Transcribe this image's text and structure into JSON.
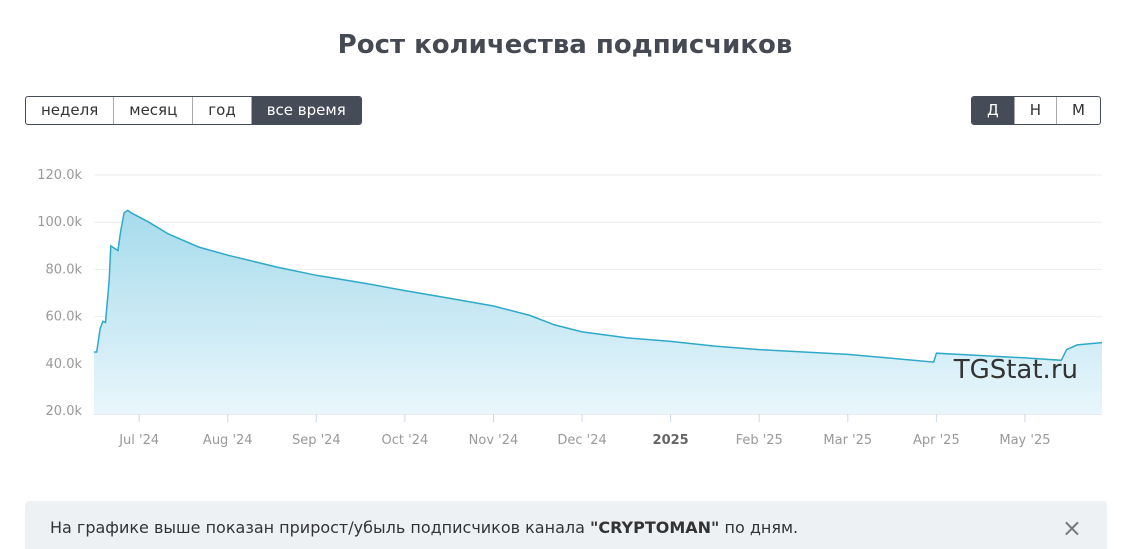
{
  "title": "Рост количества подписчиков",
  "period_buttons": [
    "неделя",
    "месяц",
    "год",
    "все время"
  ],
  "active_period": 3,
  "step_buttons": [
    "Д",
    "Н",
    "М"
  ],
  "active_step": 0,
  "watermark": "TGStat.ru",
  "notice": {
    "before": "На графике выше показан прирост/убыль подписчиков канала ",
    "channel": "\"CRYPTOMAN\"",
    "after": " по дням.",
    "close": "×"
  },
  "chart_data": {
    "type": "area",
    "x": [
      0.49,
      0.52,
      0.56,
      0.59,
      0.62,
      0.66,
      0.68,
      0.72,
      0.76,
      0.79,
      0.83,
      0.87,
      0.91,
      1.11,
      1.33,
      1.67,
      2.0,
      2.55,
      3.0,
      3.57,
      4.0,
      4.47,
      5.0,
      5.41,
      5.69,
      6.0,
      6.5,
      7.0,
      7.5,
      8.0,
      9.0,
      9.6,
      9.97,
      10.0,
      10.49,
      11.0,
      11.41,
      11.47,
      11.59,
      11.87
    ],
    "values": [
      45000,
      45000,
      55000,
      58000,
      57500,
      75000,
      90000,
      89000,
      88000,
      96000,
      104000,
      105000,
      104000,
      100000,
      95000,
      89500,
      86000,
      81000,
      77500,
      74000,
      71000,
      68000,
      64500,
      60500,
      56500,
      53500,
      51000,
      49500,
      47500,
      46000,
      44000,
      42000,
      40700,
      44500,
      43500,
      42500,
      41500,
      46000,
      48000,
      49000
    ],
    "color": "#2fa9c9",
    "xlim": [
      0.49,
      11.87
    ],
    "xticks": [
      {
        "value": 1,
        "label": "Jul '24"
      },
      {
        "value": 2,
        "label": "Aug '24"
      },
      {
        "value": 3,
        "label": "Sep '24"
      },
      {
        "value": 4,
        "label": "Oct '24"
      },
      {
        "value": 5,
        "label": "Nov '24"
      },
      {
        "value": 6,
        "label": "Dec '24"
      },
      {
        "value": 7,
        "label": "2025"
      },
      {
        "value": 8,
        "label": "Feb '25"
      },
      {
        "value": 9,
        "label": "Mar '25"
      },
      {
        "value": 10,
        "label": "Apr '25"
      },
      {
        "value": 11,
        "label": "May '25"
      }
    ],
    "ylim": [
      20000,
      120000
    ],
    "yticks": [
      {
        "value": 20000,
        "label": "20.0k"
      },
      {
        "value": 40000,
        "label": "40.0k"
      },
      {
        "value": 60000,
        "label": "60.0k"
      },
      {
        "value": 80000,
        "label": "80.0k"
      },
      {
        "value": 100000,
        "label": "100.0k"
      },
      {
        "value": 120000,
        "label": "120.0k"
      }
    ],
    "grid": true
  }
}
